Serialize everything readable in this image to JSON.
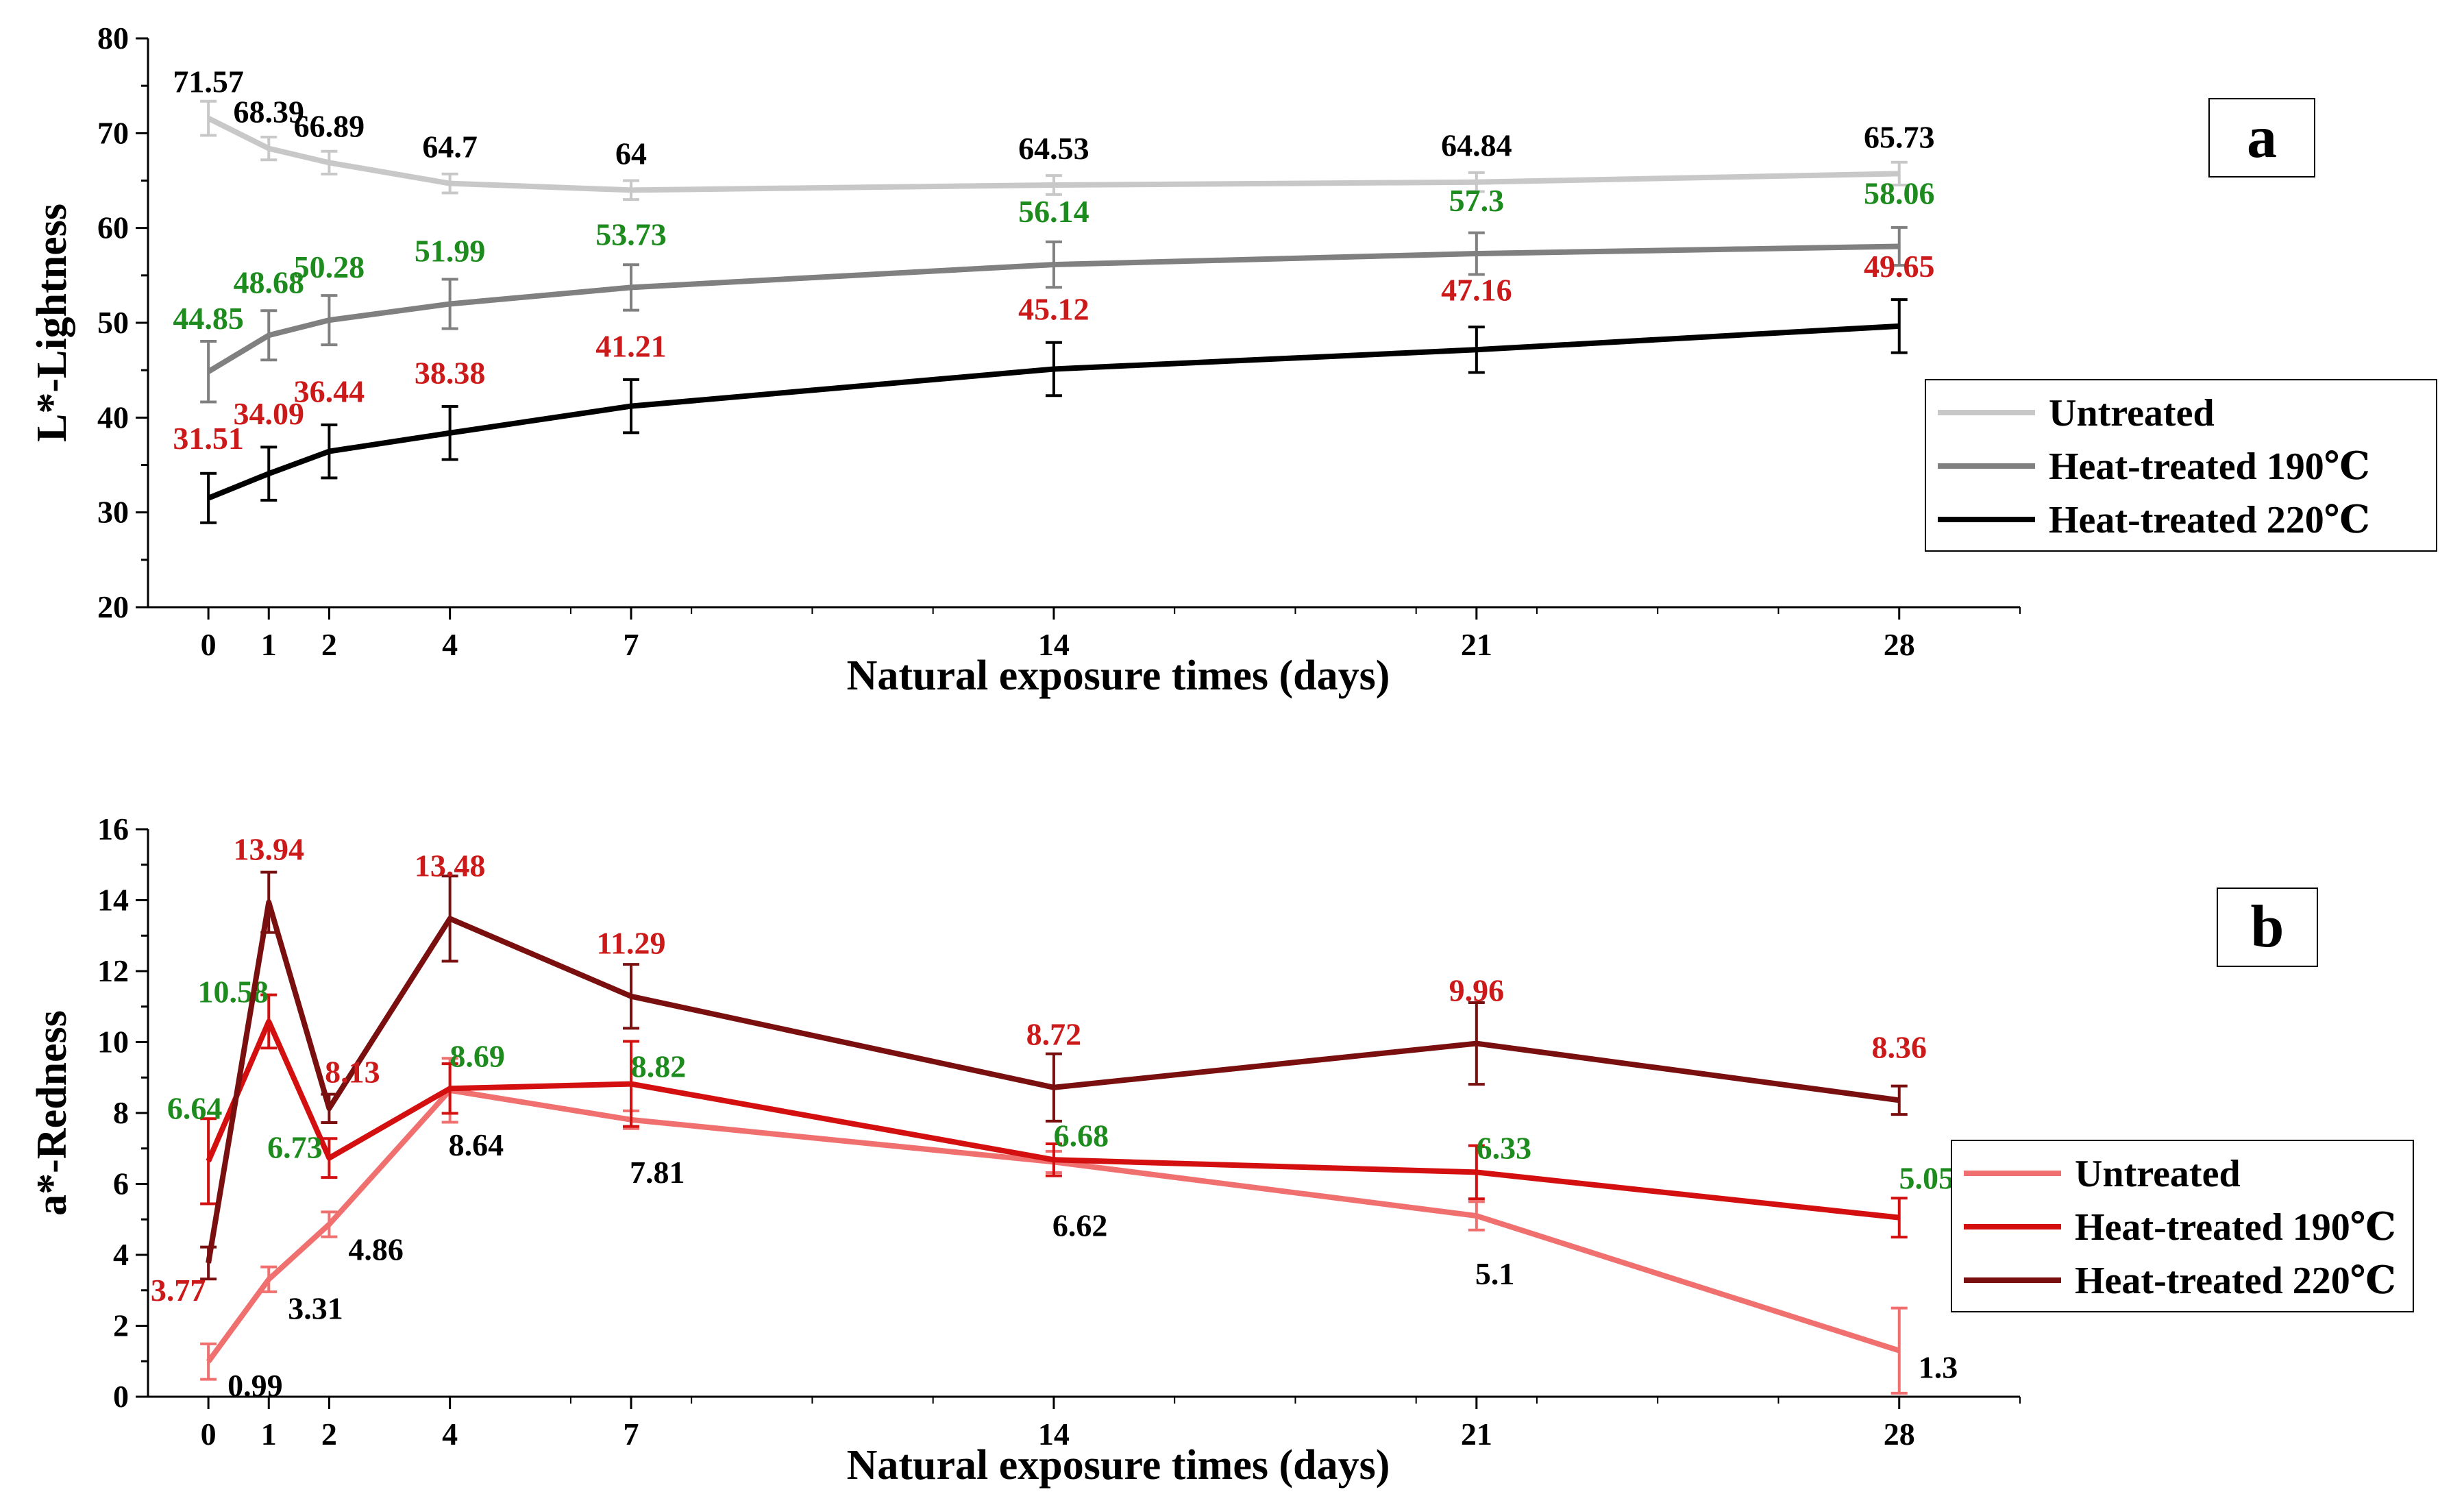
{
  "chart_data": [
    {
      "type": "line",
      "panel": "a",
      "title": "",
      "xlabel": "Natural exposure times (days)",
      "ylabel": "L*-Lightness",
      "x": [
        0,
        1,
        2,
        4,
        7,
        14,
        21,
        28
      ],
      "xticks": [
        "0",
        "1",
        "2",
        "4",
        "7",
        "14",
        "21",
        "28"
      ],
      "yticks": [
        "20",
        "30",
        "40",
        "50",
        "60",
        "70",
        "80"
      ],
      "xlim": [
        -1,
        30
      ],
      "ylim": [
        20,
        80
      ],
      "legend_position": "right",
      "series": [
        {
          "name": "Untreated",
          "color": "#c8c8c8",
          "label_color": "#000000",
          "values": [
            71.57,
            68.39,
            66.89,
            64.7,
            64,
            64.53,
            64.84,
            65.73
          ],
          "labels": [
            "71.57",
            "68.39",
            "66.89",
            "64.7",
            "64",
            "64.53",
            "64.84",
            "65.73"
          ],
          "errors": [
            1.8,
            1.2,
            1.2,
            1.0,
            1.0,
            1.0,
            1.0,
            1.2
          ]
        },
        {
          "name": "Heat-treated 190℃",
          "color": "#808080",
          "label_color": "#1e8b1e",
          "values": [
            44.85,
            48.68,
            50.28,
            51.99,
            53.73,
            56.14,
            57.3,
            58.06
          ],
          "labels": [
            "44.85",
            "48.68",
            "50.28",
            "51.99",
            "53.73",
            "56.14",
            "57.3",
            "58.06"
          ],
          "errors": [
            3.2,
            2.6,
            2.6,
            2.6,
            2.4,
            2.4,
            2.2,
            2.0
          ]
        },
        {
          "name": "Heat-treated 220℃",
          "color": "#000000",
          "label_color": "#cc1a1a",
          "values": [
            31.51,
            34.09,
            36.44,
            38.38,
            41.21,
            45.12,
            47.16,
            49.65
          ],
          "labels": [
            "31.51",
            "34.09",
            "36.44",
            "38.38",
            "41.21",
            "45.12",
            "47.16",
            "49.65"
          ],
          "errors": [
            2.6,
            2.8,
            2.8,
            2.8,
            2.8,
            2.8,
            2.4,
            2.8
          ]
        }
      ]
    },
    {
      "type": "line",
      "panel": "b",
      "title": "",
      "xlabel": "Natural exposure times (days)",
      "ylabel": "a*-Redness",
      "x": [
        0,
        1,
        2,
        4,
        7,
        14,
        21,
        28
      ],
      "xticks": [
        "0",
        "1",
        "2",
        "4",
        "7",
        "14",
        "21",
        "28"
      ],
      "yticks": [
        "0",
        "2",
        "4",
        "6",
        "8",
        "10",
        "12",
        "14",
        "16"
      ],
      "xlim": [
        -1,
        30
      ],
      "ylim": [
        0,
        16
      ],
      "legend_position": "right",
      "series": [
        {
          "name": "Untreated",
          "color": "#f07070",
          "label_color": "#000000",
          "values": [
            0.99,
            3.31,
            4.86,
            8.64,
            7.81,
            6.62,
            5.1,
            1.3
          ],
          "labels": [
            "0.99",
            "3.31",
            "4.86",
            "8.64",
            "7.81",
            "6.62",
            "5.1",
            "1.3"
          ],
          "errors": [
            0.5,
            0.35,
            0.35,
            0.9,
            0.25,
            0.3,
            0.4,
            1.2
          ]
        },
        {
          "name": "Heat-treated 190℃",
          "color": "#d40f0f",
          "label_color": "#1e8b1e",
          "values": [
            6.64,
            10.58,
            6.73,
            8.69,
            8.82,
            6.68,
            6.33,
            5.05
          ],
          "labels": [
            "6.64",
            "10.58",
            "6.73",
            "8.69",
            "8.82",
            "6.68",
            "6.33",
            "5.05"
          ],
          "errors": [
            1.2,
            0.75,
            0.55,
            0.7,
            1.2,
            0.45,
            0.75,
            0.55
          ]
        },
        {
          "name": "Heat-treated 220℃",
          "color": "#7a0f0f",
          "label_color": "#cc1a1a",
          "values": [
            3.77,
            13.94,
            8.13,
            13.48,
            11.29,
            8.72,
            9.96,
            8.36
          ],
          "labels": [
            "3.77",
            "13.94",
            "8.13",
            "13.48",
            "11.29",
            "8.72",
            "9.96",
            "8.36"
          ],
          "errors": [
            0.45,
            0.85,
            0.4,
            1.2,
            0.9,
            0.95,
            1.15,
            0.4
          ]
        }
      ]
    }
  ],
  "panels": [
    "a",
    "b"
  ]
}
